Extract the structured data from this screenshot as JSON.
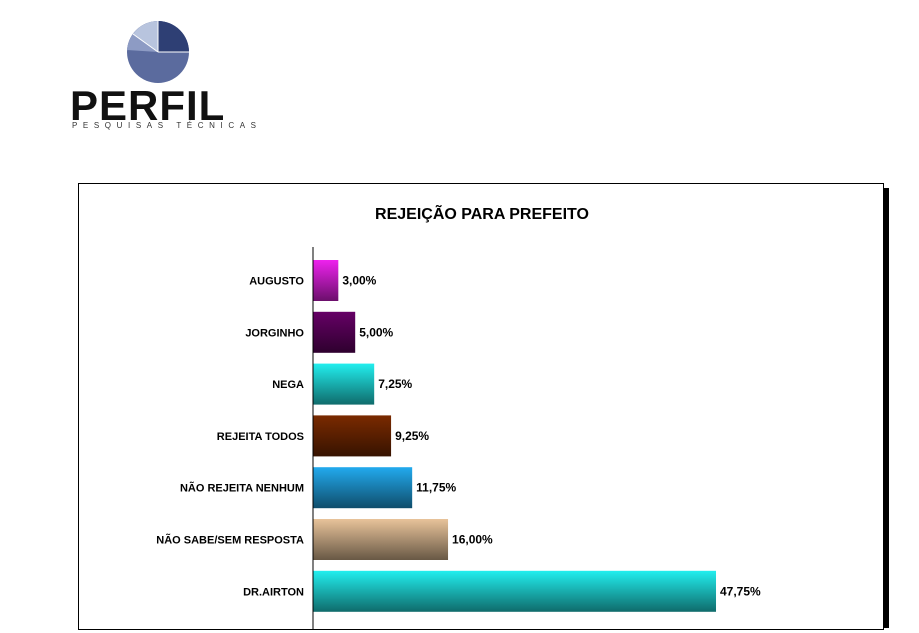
{
  "logo": {
    "brand": "PERFIL",
    "tagline": "PESQUISAS TÉCNICAS"
  },
  "chart_data": {
    "type": "bar",
    "orientation": "horizontal",
    "title": "REJEIÇÃO PARA PREFEITO",
    "categories": [
      "AUGUSTO",
      "JORGINHO",
      "NEGA",
      "REJEITA TODOS",
      "NÃO REJEITA NENHUM",
      "NÃO SABE/SEM RESPOSTA",
      "DR.AIRTON"
    ],
    "values": [
      3.0,
      5.0,
      7.25,
      9.25,
      11.75,
      16.0,
      47.75
    ],
    "value_labels": [
      "3,00%",
      "5,00%",
      "7,25%",
      "9,25%",
      "11,75%",
      "16,00%",
      "47,75%"
    ],
    "colors": [
      "#ee22ee",
      "#660066",
      "#22eeee",
      "#7a2a00",
      "#22aaee",
      "#e8c39a",
      "#22eeee"
    ],
    "xlim": [
      0,
      60
    ],
    "grid": false,
    "legend": "none"
  }
}
